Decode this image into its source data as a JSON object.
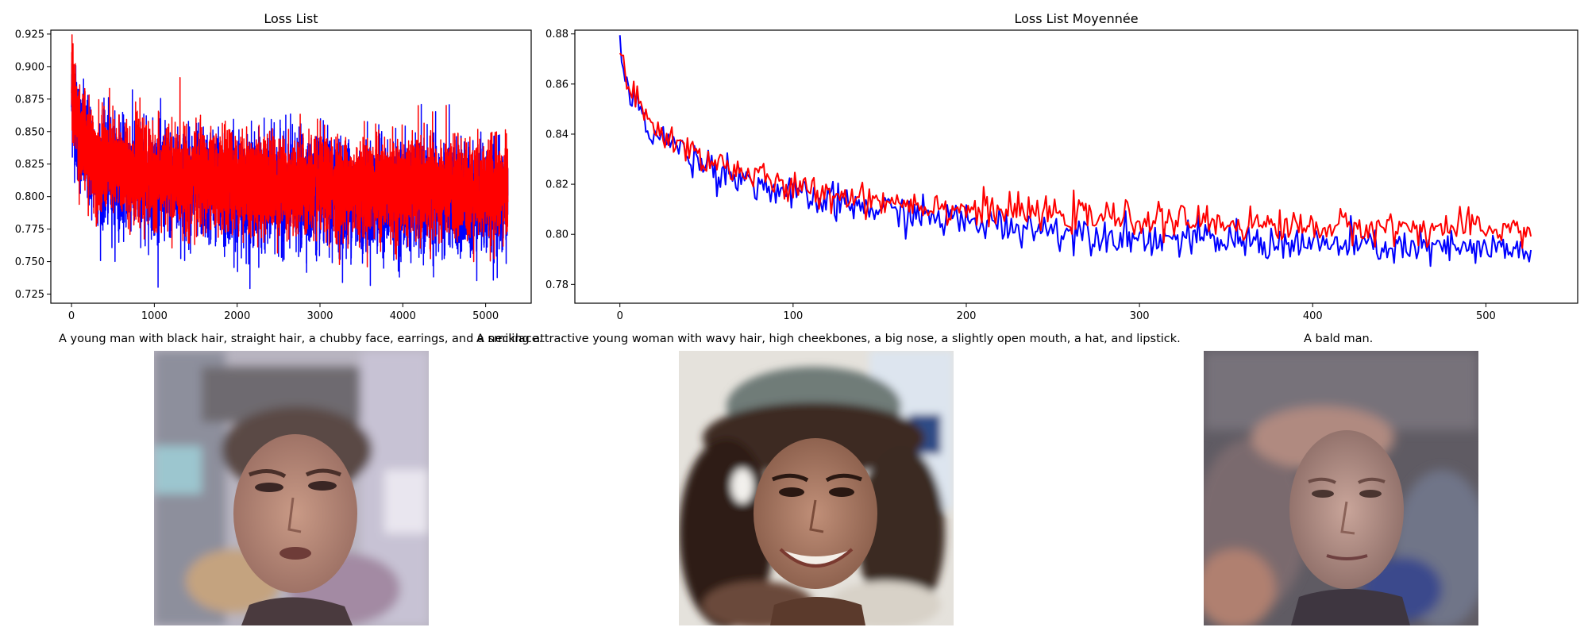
{
  "chart_data": [
    {
      "type": "line",
      "title": "Loss List",
      "xlabel": "",
      "ylabel": "",
      "xlim": [
        -250,
        5550
      ],
      "ylim": [
        0.718,
        0.928
      ],
      "xticks": [
        0,
        1000,
        2000,
        3000,
        4000,
        5000
      ],
      "yticks": [
        0.725,
        0.75,
        0.775,
        0.8,
        0.825,
        0.85,
        0.875,
        0.9,
        0.925
      ],
      "ytick_labels": [
        "0.725",
        "0.750",
        "0.775",
        "0.800",
        "0.825",
        "0.850",
        "0.875",
        "0.900",
        "0.925"
      ],
      "n_points": 5270,
      "series": [
        {
          "color": "#0000ff",
          "trend": [
            [
              0,
              0.875
            ],
            [
              100,
              0.845
            ],
            [
              300,
              0.822
            ],
            [
              1000,
              0.812
            ],
            [
              2000,
              0.806
            ],
            [
              3000,
              0.802
            ],
            [
              4000,
              0.799
            ],
            [
              5270,
              0.797
            ]
          ],
          "noise_amplitude": 0.045
        },
        {
          "color": "#ff0000",
          "trend": [
            [
              0,
              0.88
            ],
            [
              100,
              0.848
            ],
            [
              300,
              0.826
            ],
            [
              1000,
              0.816
            ],
            [
              2000,
              0.811
            ],
            [
              3000,
              0.808
            ],
            [
              4000,
              0.806
            ],
            [
              5270,
              0.805
            ]
          ],
          "noise_amplitude": 0.04
        }
      ],
      "grid": false,
      "legend": "none"
    },
    {
      "type": "line",
      "title": "Loss List Moyennée",
      "xlabel": "",
      "ylabel": "",
      "xlim": [
        -26,
        553
      ],
      "ylim": [
        0.7725,
        0.8815
      ],
      "xticks": [
        0,
        100,
        200,
        300,
        400,
        500
      ],
      "yticks": [
        0.78,
        0.8,
        0.82,
        0.84,
        0.86,
        0.88
      ],
      "ytick_labels": [
        "0.78",
        "0.80",
        "0.82",
        "0.84",
        "0.86",
        "0.88"
      ],
      "n_points": 527,
      "series": [
        {
          "color": "#0000ff",
          "trend": [
            [
              0,
              0.877
            ],
            [
              5,
              0.856
            ],
            [
              20,
              0.84
            ],
            [
              50,
              0.828
            ],
            [
              100,
              0.815
            ],
            [
              200,
              0.805
            ],
            [
              300,
              0.799
            ],
            [
              400,
              0.796
            ],
            [
              527,
              0.793
            ]
          ],
          "noise_amplitude": 0.008
        },
        {
          "color": "#ff0000",
          "trend": [
            [
              0,
              0.877
            ],
            [
              5,
              0.857
            ],
            [
              20,
              0.842
            ],
            [
              50,
              0.83
            ],
            [
              100,
              0.818
            ],
            [
              200,
              0.81
            ],
            [
              300,
              0.806
            ],
            [
              400,
              0.803
            ],
            [
              527,
              0.802
            ]
          ],
          "noise_amplitude": 0.007
        }
      ],
      "grid": false,
      "legend": "none"
    }
  ],
  "samples": [
    {
      "caption": "A young man with black hair, straight hair, a chubby face, earrings, and a necklace."
    },
    {
      "caption": "A smiling attractive young woman with wavy hair, high cheekbones, a big nose, a slightly open mouth, a hat, and lipstick."
    },
    {
      "caption": "A bald man."
    }
  ],
  "colors": {
    "blue_series": "#0000ff",
    "red_series": "#ff0000",
    "axes": "#000000",
    "background": "#ffffff"
  }
}
